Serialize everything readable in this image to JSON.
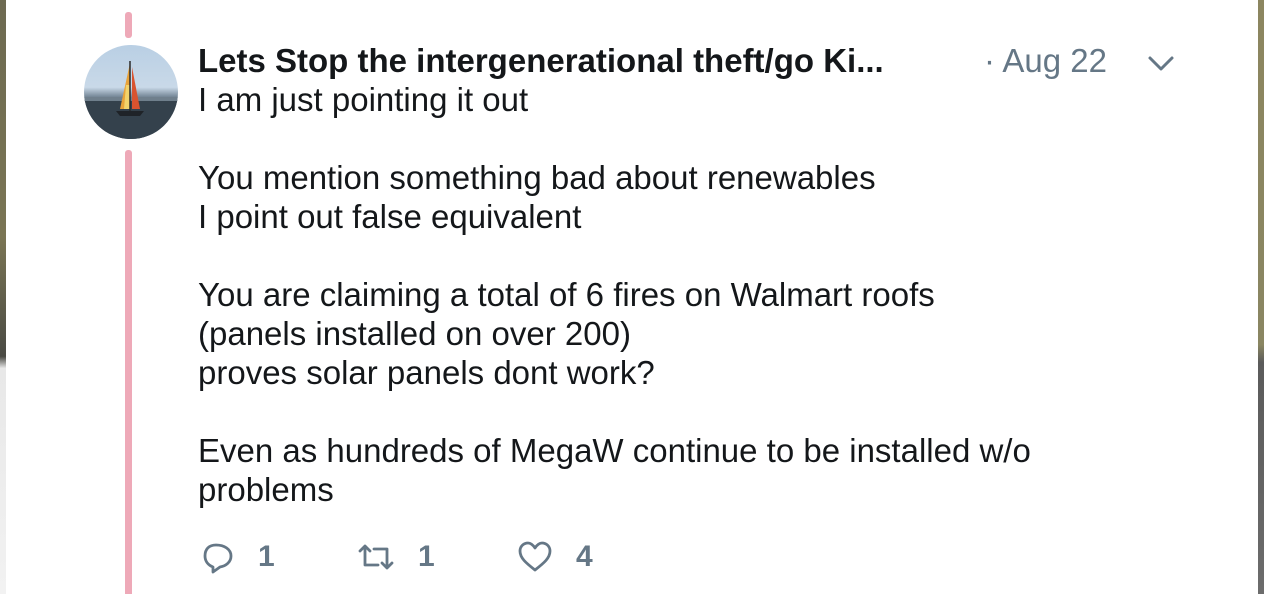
{
  "tweet": {
    "author_name": "Lets Stop the intergenerational theft/go Ki...",
    "separator": "·",
    "date": "Aug 22",
    "lines": [
      "I am just pointing it out",
      "",
      "You mention something bad about renewables",
      "I point out false equivalent",
      "",
      "You are claiming a total of 6 fires on Walmart roofs",
      "(panels installed on over 200)",
      "proves solar panels dont work?",
      "",
      "Even as hundreds of MegaW continue to be installed w/o",
      "problems"
    ],
    "actions": {
      "reply_count": "1",
      "retweet_count": "1",
      "like_count": "4"
    }
  },
  "icons": {
    "reply": "reply-icon",
    "retweet": "retweet-icon",
    "like": "heart-icon",
    "menu": "chevron-down-icon"
  },
  "colors": {
    "thread_line": "#eea9b8",
    "text": "#14171a",
    "muted": "#657786"
  }
}
